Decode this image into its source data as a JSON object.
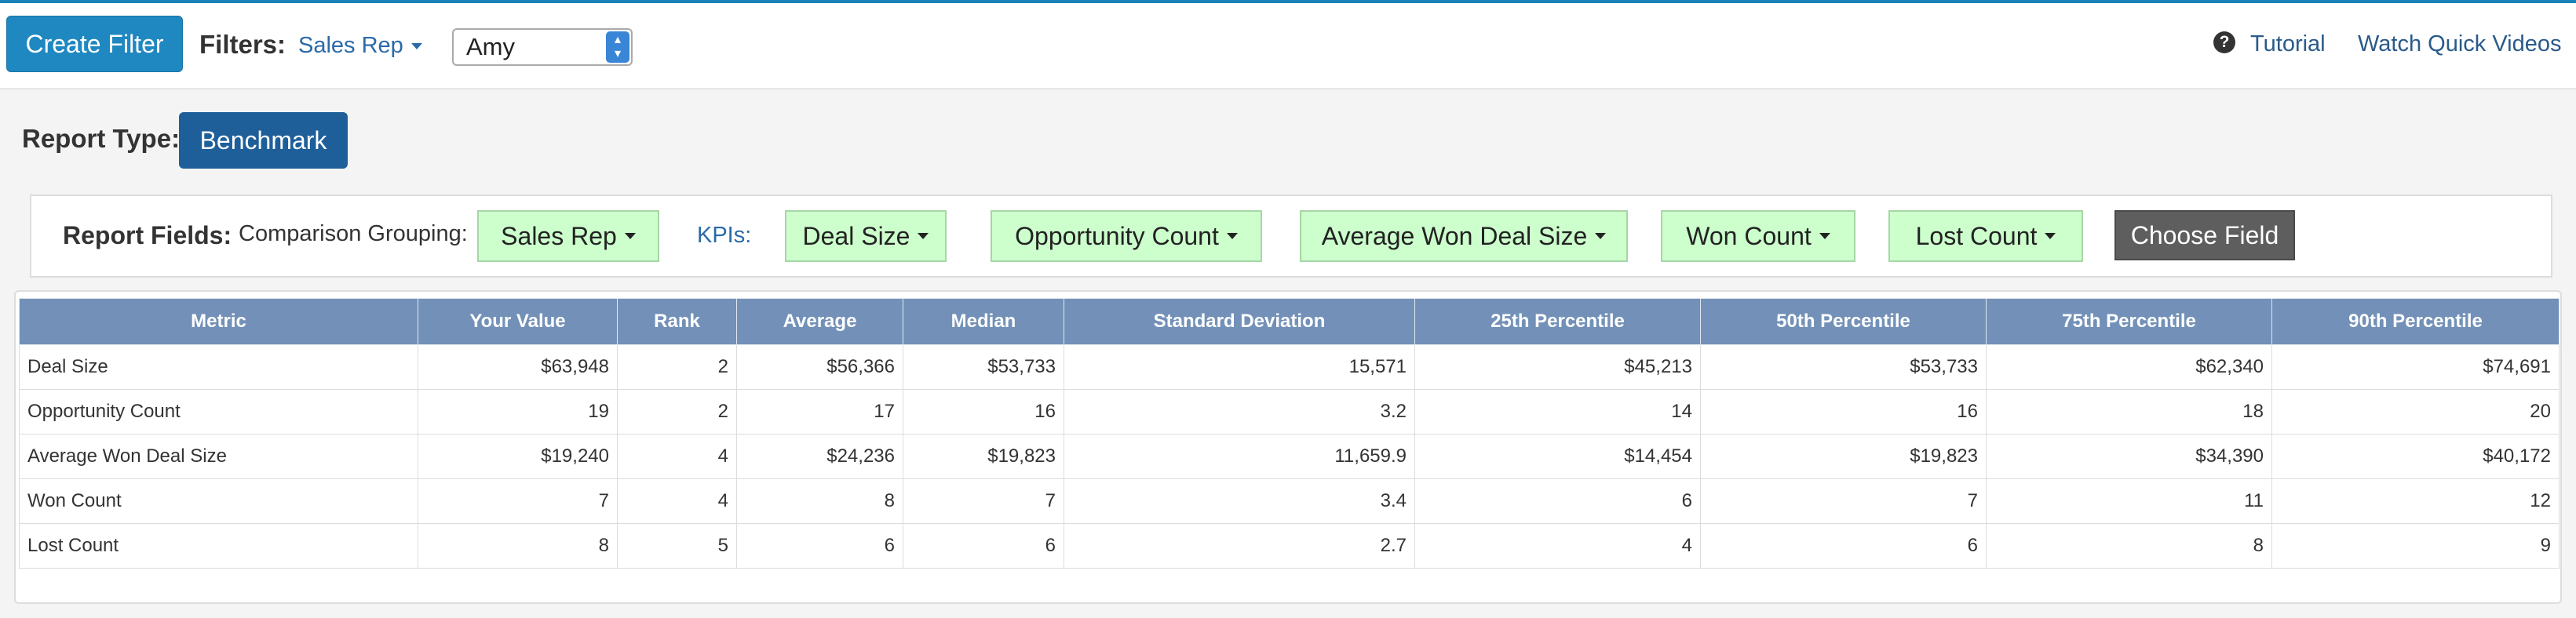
{
  "header": {
    "create_filter_label": "Create Filter",
    "filters_label": "Filters:",
    "filter_field_label": "Sales Rep",
    "filter_value": "Amy",
    "tutorial_label": "Tutorial",
    "videos_label": "Watch Quick Videos"
  },
  "report": {
    "type_label": "Report Type:",
    "type_value": "Benchmark"
  },
  "fields": {
    "report_fields_label": "Report Fields:",
    "comparison_label": "Comparison Grouping:",
    "grouping_value": "Sales Rep",
    "kpis_label": "KPIs:",
    "kpis": [
      "Deal Size",
      "Opportunity Count",
      "Average Won Deal Size",
      "Won Count",
      "Lost Count"
    ],
    "choose_field_label": "Choose Field"
  },
  "table": {
    "columns": [
      "Metric",
      "Your Value",
      "Rank",
      "Average",
      "Median",
      "Standard Deviation",
      "25th Percentile",
      "50th Percentile",
      "75th Percentile",
      "90th Percentile"
    ],
    "rows": [
      [
        "Deal Size",
        "$63,948",
        "2",
        "$56,366",
        "$53,733",
        "15,571",
        "$45,213",
        "$53,733",
        "$62,340",
        "$74,691"
      ],
      [
        "Opportunity Count",
        "19",
        "2",
        "17",
        "16",
        "3.2",
        "14",
        "16",
        "18",
        "20"
      ],
      [
        "Average Won Deal Size",
        "$19,240",
        "4",
        "$24,236",
        "$19,823",
        "11,659.9",
        "$14,454",
        "$19,823",
        "$34,390",
        "$40,172"
      ],
      [
        "Won Count",
        "7",
        "4",
        "8",
        "7",
        "3.4",
        "6",
        "7",
        "11",
        "12"
      ],
      [
        "Lost Count",
        "8",
        "5",
        "6",
        "6",
        "2.7",
        "4",
        "6",
        "8",
        "9"
      ]
    ]
  },
  "colors": {
    "primary_button": "#1f88c0",
    "benchmark_button": "#1e5f9a",
    "kpi_button": "#ccffcc",
    "table_header": "#7391b8"
  },
  "icons": {
    "help": "question-circle-icon",
    "caret": "caret-down-icon"
  }
}
